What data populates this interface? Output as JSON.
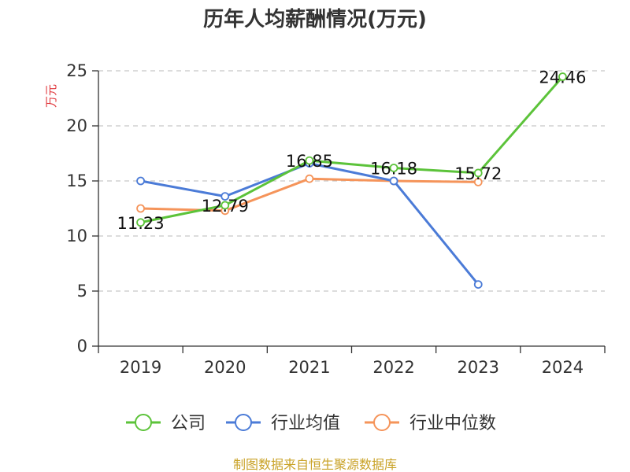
{
  "chart_data": {
    "type": "line",
    "title": "历年人均薪酬情况(万元)",
    "ylabel": "万元",
    "xlabel": "",
    "categories": [
      "2019",
      "2020",
      "2021",
      "2022",
      "2023",
      "2024"
    ],
    "ylim": [
      0,
      25
    ],
    "yticks": [
      0,
      5,
      10,
      15,
      20,
      25
    ],
    "grid": true,
    "legend_position": "bottom",
    "series": [
      {
        "name": "公司",
        "color": "#5cc33a",
        "values": [
          11.23,
          12.79,
          16.85,
          16.18,
          15.72,
          24.46
        ],
        "data_labels": [
          "11.23",
          "12.79",
          "16.85",
          "16.18",
          "15.72",
          "24.46"
        ]
      },
      {
        "name": "行业均值",
        "color": "#4b7bd7",
        "values": [
          15.0,
          13.6,
          16.6,
          15.0,
          5.6,
          null
        ]
      },
      {
        "name": "行业中位数",
        "color": "#f5945a",
        "values": [
          12.5,
          12.3,
          15.2,
          15.0,
          14.9,
          null
        ]
      }
    ]
  },
  "footer": {
    "source": "制图数据来自恒生聚源数据库"
  }
}
